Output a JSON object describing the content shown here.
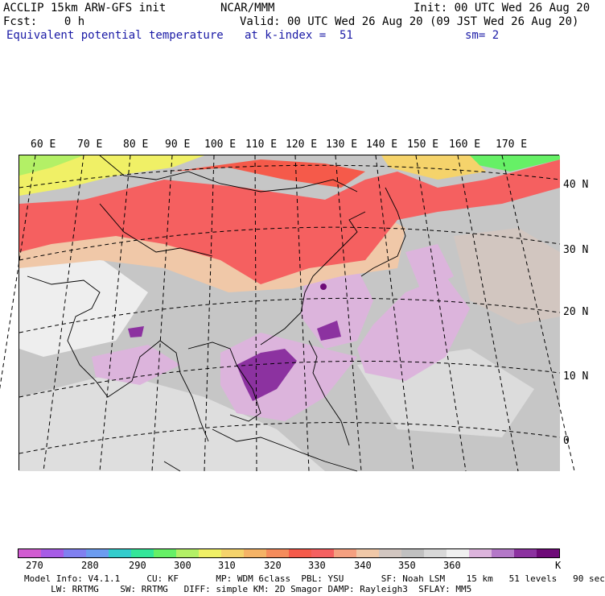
{
  "header": {
    "line1_left": "ACCLIP 15km ARW-GFS init",
    "line1_mid": "NCAR/MMM",
    "line1_right": "Init: 00 UTC Wed 26 Aug 20",
    "line2_left": "Fcst:    0 h",
    "line2_right": "Valid: 00 UTC Wed 26 Aug 20 (09 JST Wed 26 Aug 20)",
    "line3_left": "Equivalent potential temperature",
    "line3_mid": "at k-index =  51",
    "line3_right": "sm= 2"
  },
  "lon_labels": [
    "60 E",
    "70 E",
    "80 E",
    "90 E",
    "100 E",
    "110 E",
    "120 E",
    "130 E",
    "140 E",
    "150 E",
    "160 E",
    "170 E"
  ],
  "lat_labels": [
    "40 N",
    "30 N",
    "20 N",
    "10 N",
    "0"
  ],
  "colorbar": {
    "colors": [
      "#d15cd1",
      "#a75ce6",
      "#8080f0",
      "#6b9cf0",
      "#33cccc",
      "#33e699",
      "#66f066",
      "#b3f066",
      "#f0f066",
      "#f5d36b",
      "#f5b366",
      "#f58c5c",
      "#f55a4a",
      "#f56060",
      "#f5a080",
      "#f0c8a8",
      "#d2c6c0",
      "#c0c0c0",
      "#d8d8d8",
      "#f0f0f0",
      "#dcb4dc",
      "#b478c8",
      "#8c32a0",
      "#6e0a78"
    ],
    "ticks": [
      "270",
      "280",
      "290",
      "300",
      "310",
      "320",
      "330",
      "340",
      "350",
      "360"
    ],
    "unit": "K"
  },
  "model_info": {
    "line1": "Model Info: V4.1.1     CU: KF       MP: WDM 6class  PBL: YSU       SF: Noah LSM    15 km   51 levels   90 sec",
    "line2": "     LW: RRTMG    SW: RRTMG   DIFF: simple KM: 2D Smagor DAMP: Rayleigh3  SFLAY: MM5"
  }
}
